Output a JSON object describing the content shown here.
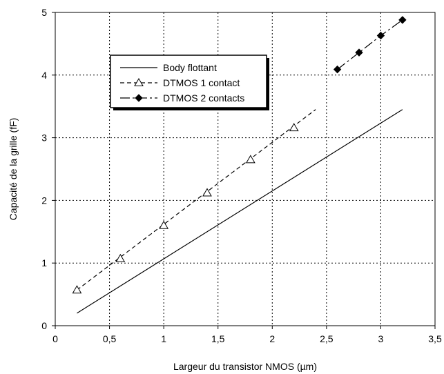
{
  "chart_data": {
    "type": "line",
    "xlabel": "Largeur du transistor NMOS (µm)",
    "ylabel": "Capacité de la grille (fF)",
    "xlim": [
      0,
      3.5
    ],
    "ylim": [
      0,
      5
    ],
    "x_ticks": [
      "0",
      "0,5",
      "1",
      "1,5",
      "2",
      "2,5",
      "3",
      "3,5"
    ],
    "y_ticks": [
      "0",
      "1",
      "2",
      "3",
      "4",
      "5"
    ],
    "grid": "dotted",
    "legend_position": "upper-left",
    "series": [
      {
        "name": "Body flottant",
        "style": "solid",
        "marker": "none",
        "x": [
          0.2,
          3.2
        ],
        "y": [
          0.2,
          3.45
        ]
      },
      {
        "name": "DTMOS 1 contact",
        "style": "dashed",
        "marker": "open-triangle",
        "x": [
          0.2,
          0.6,
          1.0,
          1.4,
          1.8,
          2.2
        ],
        "y": [
          0.57,
          1.07,
          1.6,
          2.12,
          2.65,
          3.16
        ],
        "line_extent_x": [
          0.2,
          2.4
        ],
        "line_extent_y": [
          0.57,
          3.45
        ]
      },
      {
        "name": "DTMOS 2 contacts",
        "style": "dash-dot",
        "marker": "filled-diamond",
        "x": [
          2.6,
          2.8,
          3.0,
          3.2
        ],
        "y": [
          4.09,
          4.36,
          4.63,
          4.88
        ]
      }
    ]
  }
}
